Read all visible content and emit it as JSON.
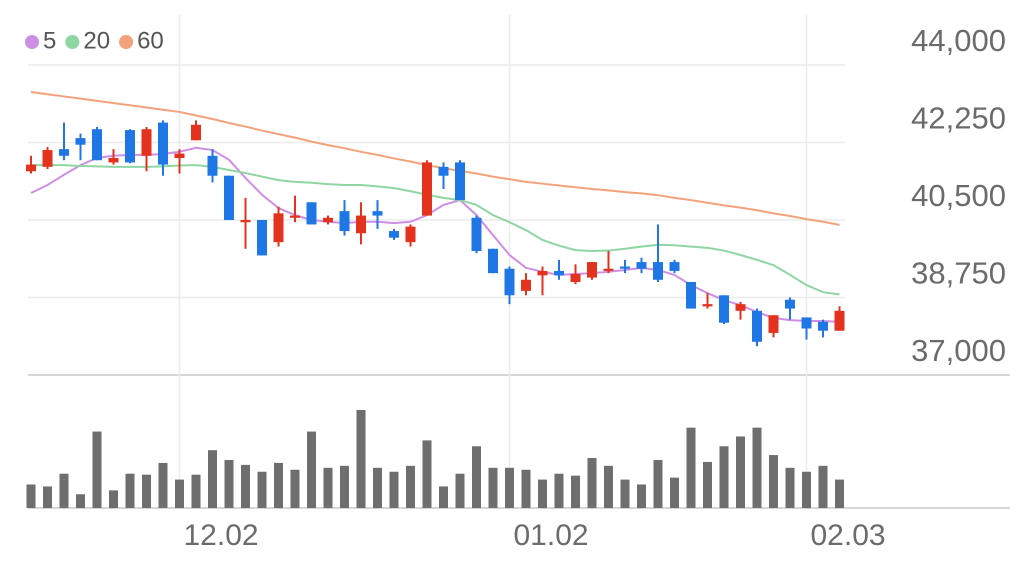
{
  "chart_data": {
    "type": "candlestick",
    "categories": [
      null,
      null,
      null,
      null,
      null,
      null,
      null,
      null,
      null,
      "12.02",
      null,
      null,
      null,
      null,
      null,
      null,
      null,
      null,
      null,
      null,
      null,
      null,
      null,
      null,
      null,
      null,
      null,
      null,
      null,
      "01.02",
      null,
      null,
      null,
      null,
      null,
      null,
      null,
      null,
      null,
      null,
      null,
      null,
      null,
      null,
      null,
      null,
      null,
      "02.03",
      null,
      null
    ],
    "open": [
      41600,
      41700,
      42100,
      42350,
      42550,
      41800,
      42530,
      41950,
      42700,
      41900,
      42300,
      41950,
      41500,
      40450,
      40500,
      40000,
      40550,
      40900,
      40450,
      40700,
      40200,
      40700,
      40250,
      40000,
      40600,
      41700,
      41800,
      40550,
      39850,
      39400,
      38900,
      39250,
      39350,
      39100,
      39200,
      39350,
      39450,
      39550,
      39550,
      39550,
      39100,
      38550,
      38800,
      38450,
      38450,
      37950,
      38700,
      38300,
      38200,
      38000
    ],
    "high": [
      41950,
      42150,
      42700,
      42450,
      42600,
      42100,
      42550,
      42600,
      42750,
      42100,
      42750,
      42100,
      41500,
      41000,
      40500,
      40800,
      41050,
      40900,
      40600,
      40950,
      40900,
      40950,
      40300,
      40400,
      41850,
      41800,
      41850,
      40600,
      39850,
      39450,
      39300,
      39450,
      39600,
      39500,
      39550,
      39800,
      39600,
      39650,
      40400,
      39600,
      39100,
      38850,
      38800,
      38650,
      38500,
      38350,
      38750,
      38300,
      38250,
      38550
    ],
    "low": [
      41550,
      41650,
      41850,
      41850,
      41850,
      41750,
      41780,
      41600,
      41500,
      41550,
      42300,
      41350,
      40500,
      39850,
      39700,
      39900,
      40450,
      40400,
      40400,
      40150,
      39950,
      40300,
      40050,
      39900,
      40600,
      41200,
      40950,
      39750,
      39300,
      38600,
      38800,
      38800,
      39150,
      39050,
      39150,
      39300,
      39300,
      39300,
      39100,
      39300,
      38500,
      38500,
      38150,
      38250,
      37650,
      37850,
      38250,
      37800,
      37850,
      38000
    ],
    "close": [
      41750,
      42080,
      41950,
      42200,
      41850,
      41900,
      41800,
      42550,
      41750,
      42000,
      42650,
      41500,
      40500,
      40500,
      39700,
      40650,
      40600,
      40400,
      40550,
      40250,
      40600,
      40600,
      40100,
      40350,
      41800,
      41500,
      40950,
      39800,
      39300,
      38800,
      39150,
      39350,
      39250,
      39280,
      39550,
      39400,
      39400,
      39400,
      39150,
      39350,
      38500,
      38600,
      38180,
      38600,
      37750,
      38350,
      38500,
      38050,
      38000,
      38450
    ],
    "volume": [
      24,
      22,
      35,
      14,
      78,
      18,
      35,
      34,
      46,
      29,
      34,
      59,
      49,
      44,
      37,
      46,
      39,
      78,
      41,
      43,
      100,
      41,
      37,
      43,
      69,
      22,
      35,
      63,
      41,
      41,
      39,
      29,
      35,
      33,
      51,
      43,
      29,
      24,
      49,
      31,
      82,
      47,
      63,
      73,
      82,
      54,
      41,
      37,
      43,
      29
    ],
    "up_color": "#e3321d",
    "down_color": "#1f77e6",
    "volume_color": "#6e6e6e",
    "ylim": [
      37000,
      44000
    ],
    "yticks": [
      {
        "value": 37000,
        "label": "37,000"
      },
      {
        "value": 38750,
        "label": "38,750"
      },
      {
        "value": 40500,
        "label": "40,500"
      },
      {
        "value": 42250,
        "label": "42,250"
      },
      {
        "value": 44000,
        "label": "44,000"
      }
    ],
    "volume_ylim": [
      0,
      100
    ],
    "grid": true,
    "series": [
      {
        "name": "5",
        "color": "#cf8ee6",
        "values": [
          41110,
          41290,
          41520,
          41740,
          41900,
          41950,
          41970,
          41970,
          41990,
          42040,
          42130,
          42080,
          41860,
          41450,
          41070,
          40770,
          40610,
          40500,
          40460,
          40430,
          40460,
          40460,
          40430,
          40460,
          40610,
          40840,
          40950,
          40610,
          40160,
          39710,
          39420,
          39330,
          39260,
          39280,
          39300,
          39330,
          39370,
          39420,
          39370,
          39260,
          39030,
          38850,
          38690,
          38580,
          38420,
          38290,
          38240,
          38220,
          38220,
          38200
        ]
      },
      {
        "name": "20",
        "color": "#8fd6a2",
        "values": [
          41740,
          41740,
          41740,
          41720,
          41710,
          41700,
          41700,
          41700,
          41710,
          41730,
          41740,
          41700,
          41630,
          41560,
          41480,
          41400,
          41360,
          41340,
          41310,
          41290,
          41290,
          41260,
          41220,
          41150,
          41070,
          41000,
          40950,
          40840,
          40610,
          40450,
          40270,
          40050,
          39920,
          39820,
          39800,
          39810,
          39850,
          39900,
          39940,
          39930,
          39900,
          39870,
          39810,
          39710,
          39600,
          39480,
          39260,
          39030,
          38870,
          38820
        ]
      },
      {
        "name": "60",
        "color": "#f4a27c",
        "values": [
          43390,
          43340,
          43290,
          43240,
          43190,
          43140,
          43090,
          43040,
          42990,
          42940,
          42860,
          42780,
          42690,
          42610,
          42520,
          42440,
          42360,
          42270,
          42190,
          42120,
          42040,
          41970,
          41890,
          41820,
          41740,
          41670,
          41610,
          41550,
          41480,
          41420,
          41360,
          41320,
          41280,
          41240,
          41200,
          41170,
          41130,
          41100,
          41060,
          41000,
          40950,
          40890,
          40830,
          40780,
          40720,
          40650,
          40590,
          40520,
          40460,
          40390
        ]
      }
    ]
  }
}
